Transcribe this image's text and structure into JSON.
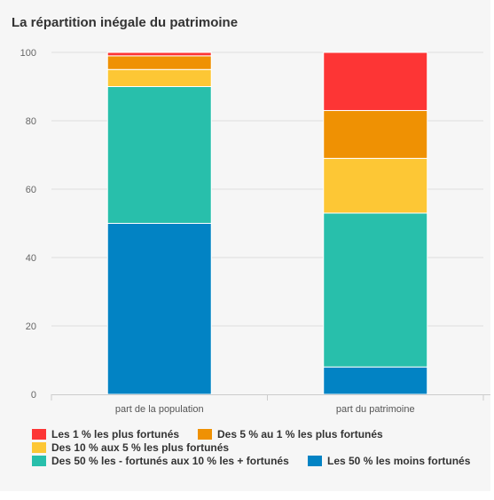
{
  "chart_data": {
    "type": "bar",
    "stacked": true,
    "title": "La répartition inégale du patrimoine",
    "xlabel": "",
    "ylabel": "",
    "ylim": [
      0,
      100
    ],
    "yticks": [
      0,
      20,
      40,
      60,
      80,
      100
    ],
    "yticks_labels": [
      "0",
      "20",
      "40",
      "60",
      "80",
      "100"
    ],
    "grid": true,
    "legend_position": "bottom",
    "categories": [
      "part de la population",
      "part du patrimoine"
    ],
    "series": [
      {
        "name": "Les 50 % les moins fortunés",
        "color": "#0283c4",
        "values": [
          50,
          8
        ]
      },
      {
        "name": "Des 50 % les - fortunés aux 10 % les + fortunés",
        "color": "#28bfab",
        "values": [
          40,
          45
        ]
      },
      {
        "name": "Des 10 % aux 5 % les plus fortunés",
        "color": "#fdc735",
        "values": [
          5,
          16
        ]
      },
      {
        "name": "Des 5 % au 1 % les plus fortunés",
        "color": "#ef9103",
        "values": [
          4,
          14
        ]
      },
      {
        "name": "Les 1 % les plus fortunés",
        "color": "#fd3535",
        "values": [
          1,
          17
        ]
      }
    ],
    "legend_order": [
      4,
      3,
      2,
      1,
      0
    ]
  }
}
